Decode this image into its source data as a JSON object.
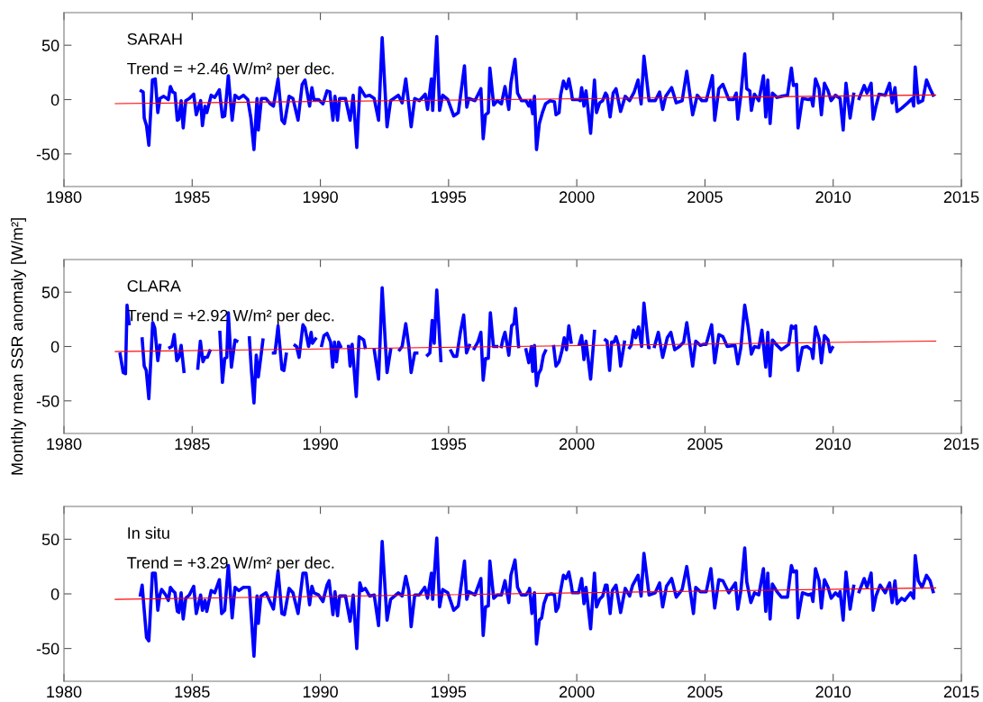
{
  "chart_data": [
    {
      "type": "line",
      "annotations": [
        "SARAH",
        "Trend = +2.46 W/m² per dec."
      ],
      "xlim": [
        1980,
        2015
      ],
      "ylim": [
        -80,
        80
      ],
      "xticks": [
        1980,
        1985,
        1990,
        1995,
        2000,
        2005,
        2010,
        2015
      ],
      "yticks": [
        -50,
        0,
        50
      ],
      "grid": false,
      "line_style": "solid",
      "series": [
        {
          "color": "#0000ff",
          "x": [
            1983.01,
            1983.09,
            1983.13,
            1983.22,
            1983.31,
            1983.45,
            1983.56,
            1983.66,
            1983.74,
            1983.89,
            1984.07,
            1984.15,
            1984.24,
            1984.33,
            1984.42,
            1984.48,
            1984.57,
            1984.65,
            1984.75,
            1984.89,
            1985.06,
            1985.16,
            1985.33,
            1985.4,
            1985.5,
            1985.57,
            1985.74,
            1985.88,
            1986.06,
            1986.18,
            1986.27,
            1986.41,
            1986.56,
            1986.67,
            1986.82,
            1987.0,
            1987.17,
            1987.29,
            1987.41,
            1987.53,
            1987.58,
            1987.7,
            1987.88,
            1988.05,
            1988.17,
            1988.35,
            1988.5,
            1988.6,
            1988.78,
            1988.93,
            1989.13,
            1989.29,
            1989.4,
            1989.58,
            1989.67,
            1989.75,
            1989.93,
            1990.1,
            1990.26,
            1990.37,
            1990.49,
            1990.57,
            1990.67,
            1990.75,
            1990.98,
            1991.16,
            1991.28,
            1991.42,
            1991.54,
            1991.75,
            1991.92,
            1992.1,
            1992.27,
            1992.41,
            1992.6,
            1992.74,
            1993.04,
            1993.19,
            1993.33,
            1993.42,
            1993.54,
            1993.68,
            1993.86,
            1994.09,
            1994.18,
            1994.33,
            1994.38,
            1994.54,
            1994.65,
            1994.77,
            1994.97,
            1995.2,
            1995.38,
            1995.62,
            1995.71,
            1995.79,
            1996.03,
            1996.26,
            1996.35,
            1996.44,
            1996.55,
            1996.61,
            1996.76,
            1996.9,
            1997.06,
            1997.2,
            1997.35,
            1997.43,
            1997.59,
            1997.69,
            1997.84,
            1998.02,
            1998.13,
            1998.19,
            1998.28,
            1998.35,
            1998.43,
            1998.54,
            1998.66,
            1998.78,
            1998.96,
            1999.13,
            1999.19,
            1999.31,
            1999.37,
            1999.48,
            1999.6,
            1999.69,
            1999.78,
            1999.83,
            2000.07,
            2000.13,
            2000.19,
            2000.28,
            2000.36,
            2000.54,
            2000.69,
            2000.77,
            2000.89,
            2001.01,
            2001.12,
            2001.18,
            2001.3,
            2001.42,
            2001.53,
            2001.71,
            2001.89,
            2002.06,
            2002.24,
            2002.39,
            2002.51,
            2002.62,
            2002.82,
            2003.06,
            2003.23,
            2003.35,
            2003.47,
            2003.7,
            2003.88,
            2004.11,
            2004.29,
            2004.52,
            2004.7,
            2004.88,
            2005.05,
            2005.29,
            2005.38,
            2005.54,
            2005.7,
            2005.93,
            2006.11,
            2006.22,
            2006.28,
            2006.4,
            2006.55,
            2006.63,
            2006.75,
            2006.81,
            2006.93,
            2007.1,
            2007.28,
            2007.37,
            2007.45,
            2007.54,
            2007.63,
            2007.81,
            2007.98,
            2008.22,
            2008.37,
            2008.45,
            2008.57,
            2008.63,
            2008.8,
            2009.04,
            2009.15,
            2009.21,
            2009.31,
            2009.45,
            2009.54,
            2009.66,
            2009.8,
            2009.92,
            2010.09,
            2010.27,
            2010.39,
            2010.5,
            2010.66,
            2010.8,
            2010.9,
            2011.01,
            2011.21,
            2011.32,
            2011.48,
            2011.56,
            2011.67,
            2011.79,
            2012.03,
            2012.2,
            2012.3,
            2012.41,
            2012.49,
            2012.67,
            2012.91,
            2013.08,
            2013.14,
            2013.2,
            2013.32,
            2013.49,
            2013.64,
            2013.78,
            2013.9
          ],
          "values": [
            8,
            7,
            -17,
            -24,
            -42,
            18,
            19,
            -12,
            1,
            3,
            0,
            12,
            7,
            6,
            -19,
            -18,
            -1,
            -26,
            -1,
            1,
            5,
            -14,
            -1,
            -24,
            -6,
            -12,
            4,
            2,
            9,
            -16,
            -15,
            22,
            -19,
            4,
            1,
            4,
            0,
            -17,
            -46,
            1,
            -28,
            1,
            1,
            -4,
            -6,
            19,
            -19,
            -22,
            3,
            1,
            -19,
            14,
            18,
            -6,
            11,
            0,
            0,
            -4,
            8,
            7,
            -19,
            3,
            -19,
            1,
            1,
            -19,
            4,
            -44,
            11,
            3,
            4,
            1,
            -19,
            57,
            -25,
            -1,
            4,
            -3,
            19,
            1,
            -25,
            1,
            -1,
            5,
            -9,
            19,
            -10,
            58,
            -10,
            4,
            0,
            -15,
            -12,
            31,
            -7,
            1,
            -1,
            10,
            -36,
            -14,
            -12,
            29,
            -5,
            -1,
            -4,
            12,
            -9,
            15,
            37,
            6,
            -1,
            -1,
            -6,
            -1,
            -13,
            3,
            -46,
            -22,
            -12,
            -4,
            -1,
            -2,
            -14,
            -12,
            4,
            17,
            10,
            19,
            8,
            0,
            0,
            -1,
            11,
            -6,
            8,
            -31,
            18,
            -12,
            -3,
            -1,
            6,
            4,
            -16,
            6,
            10,
            -11,
            3,
            -1,
            7,
            18,
            -4,
            40,
            -1,
            -1,
            7,
            -9,
            3,
            11,
            -3,
            -1,
            26,
            -14,
            4,
            -1,
            -1,
            22,
            -19,
            10,
            14,
            0,
            0,
            6,
            -18,
            4,
            42,
            10,
            8,
            -10,
            5,
            -1,
            22,
            -16,
            18,
            -22,
            6,
            2,
            3,
            4,
            29,
            13,
            14,
            -26,
            1,
            0,
            1,
            -6,
            19,
            10,
            -14,
            15,
            8,
            -1,
            4,
            1,
            -28,
            15,
            -17,
            5,
            null,
            1,
            13,
            6,
            15,
            -18,
            -6,
            5,
            4,
            15,
            -3,
            11,
            -11,
            -8,
            -3,
            1,
            -6,
            30,
            -3,
            -1,
            18,
            10,
            4
          ]
        },
        {
          "type": "line",
          "color": "#ff0000",
          "x": [
            1982,
            2014
          ],
          "values": [
            -3.7,
            4.2
          ]
        }
      ]
    },
    {
      "type": "line",
      "annotations": [
        "CLARA",
        "Trend = +2.92 W/m² per dec."
      ],
      "ylabel": "Monthly mean SSR anomaly [W/m²]",
      "xlim": [
        1980,
        2015
      ],
      "ylim": [
        -80,
        80
      ],
      "xticks": [
        1980,
        1985,
        1990,
        1995,
        2000,
        2005,
        2010,
        2015
      ],
      "yticks": [
        -50,
        0,
        50
      ],
      "grid": false,
      "line_style": "solid",
      "series": [
        {
          "color": "#0000ff",
          "x": [
            1982.19,
            1982.31,
            1982.4,
            1982.46,
            1982.54,
            1982.8,
            1983.05,
            1983.13,
            1983.21,
            1983.31,
            1983.46,
            1983.54,
            1983.66,
            1983.74,
            1983.9,
            1984.13,
            1984.21,
            1984.3,
            1984.4,
            1984.48,
            1984.57,
            1984.68,
            1984.9,
            1985.22,
            1985.32,
            1985.42,
            1985.5,
            1985.59,
            1985.69,
            1985.9,
            1986.08,
            1986.18,
            1986.27,
            1986.35,
            1986.41,
            1986.53,
            1986.67,
            1986.74,
            1987.0,
            1987.23,
            1987.31,
            1987.41,
            1987.5,
            1987.58,
            1987.76,
            1987.95,
            1988.17,
            1988.23,
            1988.35,
            1988.5,
            1988.58,
            1988.67,
            1988.85,
            1989.01,
            1989.07,
            1989.17,
            1989.32,
            1989.4,
            1989.54,
            1989.64,
            1989.69,
            1989.81,
            1989.93,
            1990.05,
            1990.14,
            1990.26,
            1990.4,
            1990.48,
            1990.55,
            1990.63,
            1990.71,
            1990.79,
            1990.95,
            1991.1,
            1991.16,
            1991.24,
            1991.4,
            1991.51,
            1991.69,
            1991.75,
            1991.9,
            1992.1,
            1992.27,
            1992.41,
            1992.6,
            1992.74,
            1992.9,
            1993.09,
            1993.19,
            1993.33,
            1993.45,
            1993.54,
            1993.68,
            1993.76,
            1994.0,
            1994.18,
            1994.27,
            1994.36,
            1994.44,
            1994.54,
            1994.7,
            1994.9,
            1995.09,
            1995.2,
            1995.32,
            1995.46,
            1995.59,
            1995.7,
            1995.81,
            1995.9,
            1996.0,
            1996.14,
            1996.26,
            1996.35,
            1996.44,
            1996.55,
            1996.63,
            1996.75,
            1996.88,
            1996.97,
            1997.06,
            1997.12,
            1997.2,
            1997.26,
            1997.35,
            1997.46,
            1997.55,
            1997.61,
            1997.73,
            1997.9,
            1998.02,
            1998.13,
            1998.23,
            1998.28,
            1998.35,
            1998.43,
            1998.51,
            1998.6,
            1998.7,
            1998.78,
            1998.95,
            1999.1,
            1999.19,
            1999.31,
            1999.42,
            1999.51,
            1999.6,
            1999.69,
            1999.78,
            1999.95,
            2000.1,
            2000.19,
            2000.28,
            2000.36,
            2000.54,
            2000.69,
            2000.9,
            2001.12,
            2001.18,
            2001.28,
            2001.36,
            2001.45,
            2001.53,
            2001.63,
            2001.71,
            2001.86,
            2001.96,
            2002.06,
            2002.12,
            2002.21,
            2002.3,
            2002.41,
            2002.53,
            2002.62,
            2002.8,
            2002.82,
            2002.92,
            2003.03,
            2003.18,
            2003.35,
            2003.53,
            2003.67,
            2003.82,
            2004.0,
            2004.17,
            2004.29,
            2004.52,
            2004.64,
            2004.82,
            2004.93,
            2005.05,
            2005.26,
            2005.38,
            2005.54,
            2005.7,
            2005.87,
            2006.17,
            2006.28,
            2006.4,
            2006.55,
            2006.69,
            2006.81,
            2006.93,
            2007.1,
            2007.22,
            2007.37,
            2007.45,
            2007.54,
            2007.63,
            2007.81,
            2007.98,
            2008.27,
            2008.37,
            2008.45,
            2008.54,
            2008.63,
            2008.8,
            2008.98,
            2009.15,
            2009.21,
            2009.31,
            2009.45,
            2009.54,
            2009.66,
            2009.8,
            2009.88,
            2009.97
          ],
          "values": [
            -7,
            -24,
            -25,
            38,
            21,
            null,
            7,
            -18,
            -22,
            -48,
            22,
            17,
            -13,
            1,
            null,
            -1,
            0,
            11,
            -13,
            -10,
            1,
            -23,
            null,
            -20,
            5,
            -14,
            -10,
            -10,
            -4,
            null,
            13,
            -33,
            -11,
            -10,
            31,
            -19,
            6,
            5,
            null,
            8,
            -22,
            -52,
            -8,
            -28,
            6,
            null,
            -6,
            -6,
            19,
            -21,
            -22,
            -7,
            null,
            1,
            0,
            -10,
            20,
            17,
            0,
            13,
            3,
            7,
            null,
            1,
            10,
            12,
            4,
            -19,
            4,
            -14,
            4,
            0,
            null,
            0,
            -18,
            2,
            -46,
            9,
            6,
            -1,
            null,
            -3,
            -30,
            54,
            -24,
            -3,
            null,
            -3,
            0,
            21,
            0,
            -24,
            -6,
            -6,
            null,
            -8,
            -6,
            24,
            3,
            52,
            -13,
            null,
            -4,
            -9,
            -9,
            13,
            29,
            -6,
            1,
            null,
            -2,
            4,
            13,
            -31,
            -11,
            -11,
            31,
            0,
            0,
            null,
            0,
            7,
            13,
            5,
            -8,
            19,
            21,
            35,
            0,
            null,
            -3,
            -15,
            0,
            -23,
            1,
            -36,
            -25,
            -21,
            -8,
            -4,
            null,
            0,
            -18,
            -14,
            -4,
            8,
            -3,
            19,
            4,
            null,
            2,
            10,
            -12,
            5,
            -30,
            14,
            null,
            6,
            5,
            -22,
            4,
            4,
            9,
            1,
            -18,
            4,
            null,
            -1,
            1,
            15,
            8,
            18,
            0,
            40,
            -1,
            -1,
            null,
            0,
            13,
            -10,
            8,
            13,
            -3,
            0,
            4,
            22,
            -18,
            5,
            1,
            2,
            2,
            20,
            -15,
            11,
            9,
            0,
            1,
            -16,
            -1,
            38,
            17,
            -7,
            0,
            -1,
            15,
            -19,
            13,
            -27,
            6,
            1,
            -3,
            2,
            19,
            17,
            19,
            -22,
            -1,
            0,
            -3,
            -11,
            18,
            7,
            -15,
            10,
            6,
            -5,
            -1
          ]
        },
        {
          "type": "line",
          "color": "#ff0000",
          "x": [
            1982,
            2014
          ],
          "values": [
            -4.7,
            5.0
          ]
        }
      ]
    },
    {
      "type": "line",
      "annotations": [
        "In situ",
        "Trend = +3.29 W/m² per dec."
      ],
      "xlim": [
        1980,
        2015
      ],
      "ylim": [
        -80,
        80
      ],
      "xticks": [
        1980,
        1985,
        1990,
        1995,
        2000,
        2005,
        2010,
        2015
      ],
      "yticks": [
        -50,
        0,
        50
      ],
      "grid": false,
      "line_style": "solid",
      "series": [
        {
          "color": "#0000ff",
          "x": [
            1982.98,
            1983.05,
            1983.13,
            1983.22,
            1983.31,
            1983.45,
            1983.56,
            1983.66,
            1983.74,
            1983.81,
            1983.97,
            1984.07,
            1984.15,
            1984.24,
            1984.33,
            1984.42,
            1984.48,
            1984.57,
            1984.65,
            1984.75,
            1984.89,
            1985.06,
            1985.16,
            1985.33,
            1985.4,
            1985.5,
            1985.57,
            1985.74,
            1985.88,
            1986.06,
            1986.15,
            1986.27,
            1986.41,
            1986.56,
            1986.67,
            1986.82,
            1987.0,
            1987.23,
            1987.41,
            1987.53,
            1987.58,
            1987.68,
            1987.88,
            1988.17,
            1988.35,
            1988.5,
            1988.6,
            1988.78,
            1988.93,
            1989.13,
            1989.32,
            1989.44,
            1989.58,
            1989.67,
            1989.75,
            1989.93,
            1990.1,
            1990.26,
            1990.34,
            1990.49,
            1990.57,
            1990.67,
            1990.75,
            1990.98,
            1991.16,
            1991.28,
            1991.42,
            1991.54,
            1991.63,
            1991.75,
            1991.92,
            1992.1,
            1992.27,
            1992.41,
            1992.6,
            1992.74,
            1993.04,
            1993.19,
            1993.33,
            1993.45,
            1993.54,
            1993.68,
            1993.86,
            1994.07,
            1994.18,
            1994.33,
            1994.38,
            1994.54,
            1994.65,
            1994.77,
            1994.97,
            1995.2,
            1995.38,
            1995.62,
            1995.71,
            1995.79,
            1996.03,
            1996.26,
            1996.35,
            1996.44,
            1996.55,
            1996.61,
            1996.76,
            1996.9,
            1997.06,
            1997.2,
            1997.35,
            1997.43,
            1997.59,
            1997.69,
            1997.84,
            1998.02,
            1998.13,
            1998.16,
            1998.25,
            1998.35,
            1998.43,
            1998.54,
            1998.63,
            1998.72,
            1998.84,
            1999.01,
            1999.13,
            1999.19,
            1999.28,
            1999.37,
            1999.48,
            1999.58,
            1999.69,
            1999.78,
            1999.83,
            2000.07,
            2000.19,
            2000.28,
            2000.36,
            2000.54,
            2000.69,
            2000.77,
            2000.89,
            2001.01,
            2001.12,
            2001.18,
            2001.3,
            2001.39,
            2001.53,
            2001.71,
            2001.89,
            2002.06,
            2002.18,
            2002.39,
            2002.51,
            2002.62,
            2002.82,
            2003.06,
            2003.23,
            2003.35,
            2003.5,
            2003.7,
            2003.88,
            2004.11,
            2004.29,
            2004.55,
            2004.64,
            2004.82,
            2005.05,
            2005.23,
            2005.38,
            2005.54,
            2005.7,
            2005.93,
            2006.19,
            2006.28,
            2006.4,
            2006.55,
            2006.63,
            2006.79,
            2006.93,
            2007.1,
            2007.28,
            2007.37,
            2007.45,
            2007.54,
            2007.63,
            2007.81,
            2007.98,
            2008.22,
            2008.37,
            2008.45,
            2008.57,
            2008.63,
            2008.8,
            2009.04,
            2009.15,
            2009.21,
            2009.31,
            2009.45,
            2009.54,
            2009.66,
            2009.8,
            2009.92,
            2010.09,
            2010.21,
            2010.27,
            2010.39,
            2010.5,
            2010.66,
            2010.8,
            2010.9,
            2011.01,
            2011.21,
            2011.32,
            2011.48,
            2011.56,
            2011.67,
            2011.83,
            2012.03,
            2012.2,
            2012.3,
            2012.41,
            2012.49,
            2012.67,
            2012.79,
            2013.02,
            2013.14,
            2013.2,
            2013.32,
            2013.47,
            2013.64,
            2013.78,
            2013.9
          ],
          "values": [
            -1,
            8,
            -15,
            -40,
            -43,
            19,
            19,
            -15,
            -1,
            4,
            -1,
            -6,
            6,
            3,
            1,
            -16,
            -17,
            1,
            -23,
            -4,
            -1,
            7,
            -18,
            -1,
            -15,
            -6,
            -16,
            3,
            1,
            13,
            -18,
            -15,
            26,
            -22,
            6,
            3,
            6,
            6,
            -57,
            -2,
            -27,
            -2,
            1,
            -14,
            21,
            -18,
            -19,
            5,
            1,
            -18,
            19,
            19,
            -10,
            7,
            1,
            -1,
            -7,
            8,
            12,
            -19,
            2,
            -20,
            -2,
            -2,
            -25,
            -1,
            -50,
            10,
            3,
            5,
            -2,
            -1,
            -29,
            48,
            -24,
            -5,
            1,
            -2,
            16,
            3,
            -30,
            -1,
            -1,
            6,
            -4,
            19,
            -5,
            51,
            -12,
            4,
            1,
            -15,
            -11,
            30,
            -5,
            2,
            -1,
            14,
            -38,
            -12,
            -11,
            30,
            -4,
            -1,
            -1,
            12,
            -8,
            17,
            31,
            6,
            -1,
            -1,
            3,
            5,
            -18,
            1,
            -46,
            -24,
            -22,
            -9,
            -1,
            0,
            -1,
            -16,
            -12,
            3,
            17,
            14,
            20,
            9,
            1,
            1,
            14,
            -9,
            6,
            -32,
            19,
            -12,
            -5,
            -2,
            8,
            8,
            -18,
            3,
            8,
            -17,
            5,
            -2,
            8,
            17,
            -2,
            37,
            -1,
            1,
            10,
            -12,
            7,
            14,
            -3,
            4,
            25,
            -18,
            6,
            2,
            2,
            23,
            -13,
            13,
            12,
            1,
            10,
            -14,
            3,
            42,
            11,
            -8,
            1,
            -1,
            23,
            -16,
            19,
            -23,
            9,
            2,
            -3,
            -3,
            26,
            20,
            21,
            -22,
            1,
            -1,
            0,
            -7,
            23,
            12,
            -13,
            13,
            6,
            -4,
            1,
            -2,
            2,
            -24,
            20,
            -14,
            7,
            null,
            2,
            14,
            6,
            19,
            -15,
            -2,
            8,
            1,
            10,
            -8,
            12,
            -9,
            -4,
            -6,
            1,
            -4,
            35,
            12,
            6,
            17,
            12,
            2
          ]
        },
        {
          "type": "line",
          "color": "#ff0000",
          "x": [
            1982,
            2014
          ],
          "values": [
            -5.0,
            5.5
          ]
        }
      ]
    }
  ]
}
